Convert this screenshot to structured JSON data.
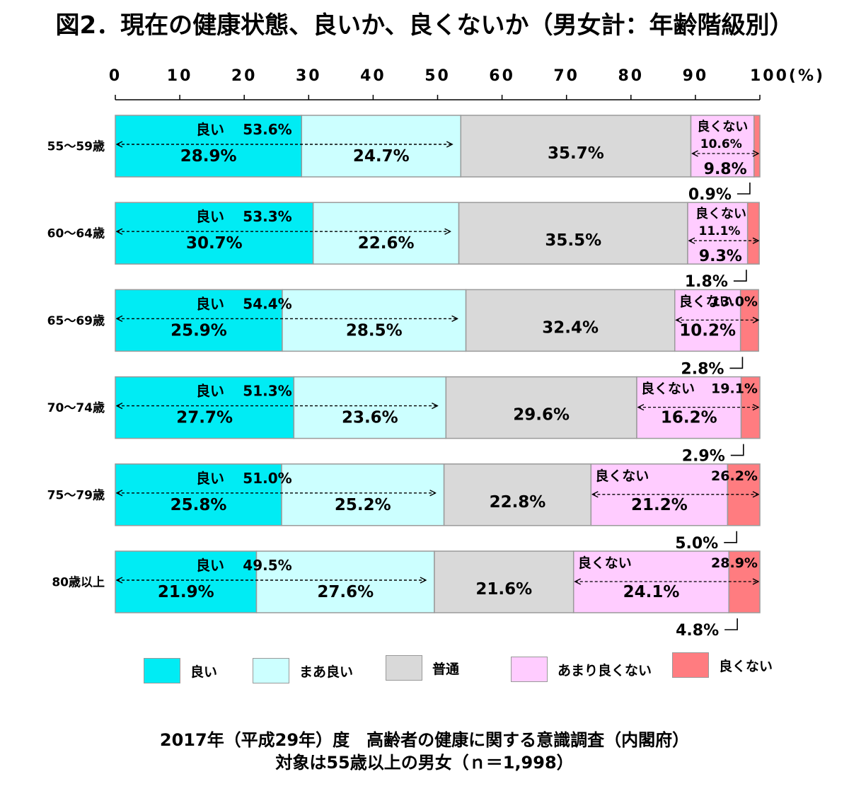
{
  "title": "図2．現在の健康状態、良いか、良くないか（男女計：年齢階級別）",
  "chart_data": {
    "type": "bar",
    "orientation": "horizontal",
    "stacked": true,
    "percent_axis": {
      "ticks": [
        "0",
        "10",
        "20",
        "30",
        "40",
        "50",
        "60",
        "70",
        "80",
        "90",
        "100(%)"
      ],
      "xlim": [
        0,
        100
      ]
    },
    "categories": [
      "55～59歳",
      "60～64歳",
      "65～69歳",
      "70～74歳",
      "75～79歳",
      "80歳以上"
    ],
    "series": [
      {
        "name": "良い",
        "color": "#00ECF4",
        "values": [
          28.9,
          30.7,
          25.9,
          27.7,
          25.8,
          21.9
        ],
        "labels": [
          "28.9%",
          "30.7%",
          "25.9%",
          "27.7%",
          "25.8%",
          "21.9%"
        ]
      },
      {
        "name": "まあ良い",
        "color": "#CCFFFF",
        "values": [
          24.7,
          22.6,
          28.5,
          23.6,
          25.2,
          27.6
        ],
        "labels": [
          "24.7%",
          "22.6%",
          "28.5%",
          "23.6%",
          "25.2%",
          "27.6%"
        ]
      },
      {
        "name": "普通",
        "color": "#D9D9D9",
        "values": [
          35.7,
          35.5,
          32.4,
          29.6,
          22.8,
          21.6
        ],
        "labels": [
          "35.7%",
          "35.5%",
          "32.4%",
          "29.6%",
          "22.8%",
          "21.6%"
        ]
      },
      {
        "name": "あまり良くない",
        "color": "#FFCCFF",
        "values": [
          9.8,
          9.3,
          10.2,
          16.2,
          21.2,
          24.1
        ],
        "labels": [
          "9.8%",
          "9.3%",
          "10.2%",
          "16.2%",
          "21.2%",
          "24.1%"
        ]
      },
      {
        "name": "良くない",
        "color": "#FF7C80",
        "values": [
          0.9,
          1.8,
          2.8,
          2.9,
          5.0,
          4.8
        ],
        "labels": [
          "0.9%",
          "1.8%",
          "2.8%",
          "2.9%",
          "5.0%",
          "4.8%"
        ]
      }
    ],
    "good_totals": {
      "label": "良い",
      "values": [
        53.6,
        53.3,
        54.4,
        51.3,
        51.0,
        49.5
      ],
      "labels": [
        "53.6%",
        "53.3%",
        "54.4%",
        "51.3%",
        "51.0%",
        "49.5%"
      ]
    },
    "not_good_totals": {
      "label": "良くない",
      "values": [
        10.6,
        11.1,
        13.0,
        19.1,
        26.2,
        28.9
      ],
      "labels": [
        "10.6%",
        "11.1%",
        "13.0%",
        "19.1%",
        "26.2%",
        "28.9%"
      ]
    }
  },
  "legend": [
    {
      "label": "良い",
      "color": "#00ECF4"
    },
    {
      "label": "まあ良い",
      "color": "#CCFFFF"
    },
    {
      "label": "普通",
      "color": "#D9D9D9"
    },
    {
      "label": "あまり良くない",
      "color": "#FFCCFF"
    },
    {
      "label": "良くない",
      "color": "#FF7C80"
    }
  ],
  "source": {
    "line1": "2017年（平成29年）度　高齢者の健康に関する意識調査（内閣府）",
    "line2": "対象は55歳以上の男女（ｎ＝1,998）"
  }
}
